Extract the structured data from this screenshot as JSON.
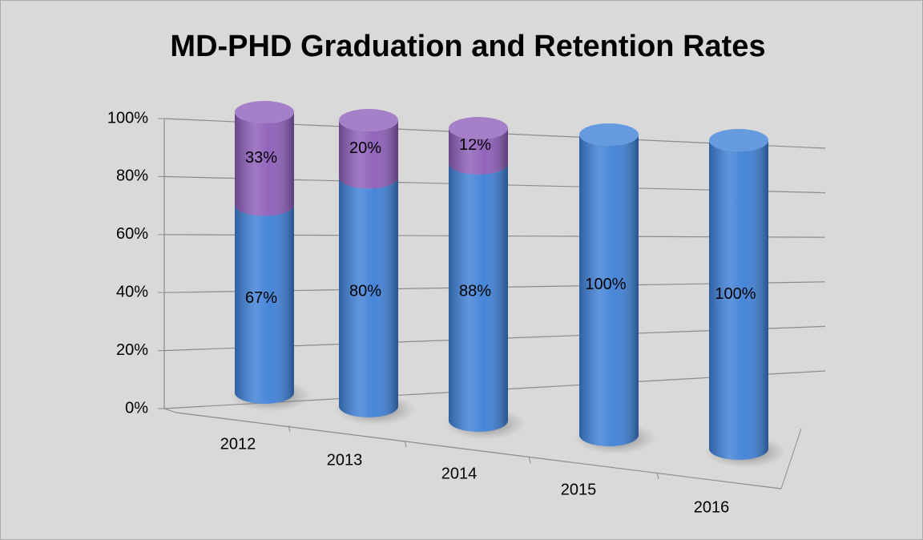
{
  "chart_data": {
    "type": "bar3d",
    "title": "MD-PHD Graduation and Retention Rates",
    "categories": [
      "2012",
      "2013",
      "2014",
      "2015",
      "2016"
    ],
    "series": [
      {
        "color": "#3d7fd6",
        "values": [
          67,
          80,
          88,
          100,
          100
        ],
        "value_labels": [
          "67%",
          "80%",
          "88%",
          "100%",
          "100%"
        ]
      },
      {
        "color": "#8c5cb8",
        "values": [
          33,
          20,
          12,
          null,
          null
        ],
        "value_labels": [
          "33%",
          "20%",
          "12%",
          null,
          null
        ]
      }
    ],
    "stacked": true,
    "ylim": [
      0,
      100
    ],
    "yticks": [
      {
        "value": 0,
        "label": "0%"
      },
      {
        "value": 20,
        "label": "20%"
      },
      {
        "value": 40,
        "label": "40%"
      },
      {
        "value": 60,
        "label": "60%"
      },
      {
        "value": 80,
        "label": "80%"
      },
      {
        "value": 100,
        "label": "100%"
      }
    ],
    "grid": true
  }
}
